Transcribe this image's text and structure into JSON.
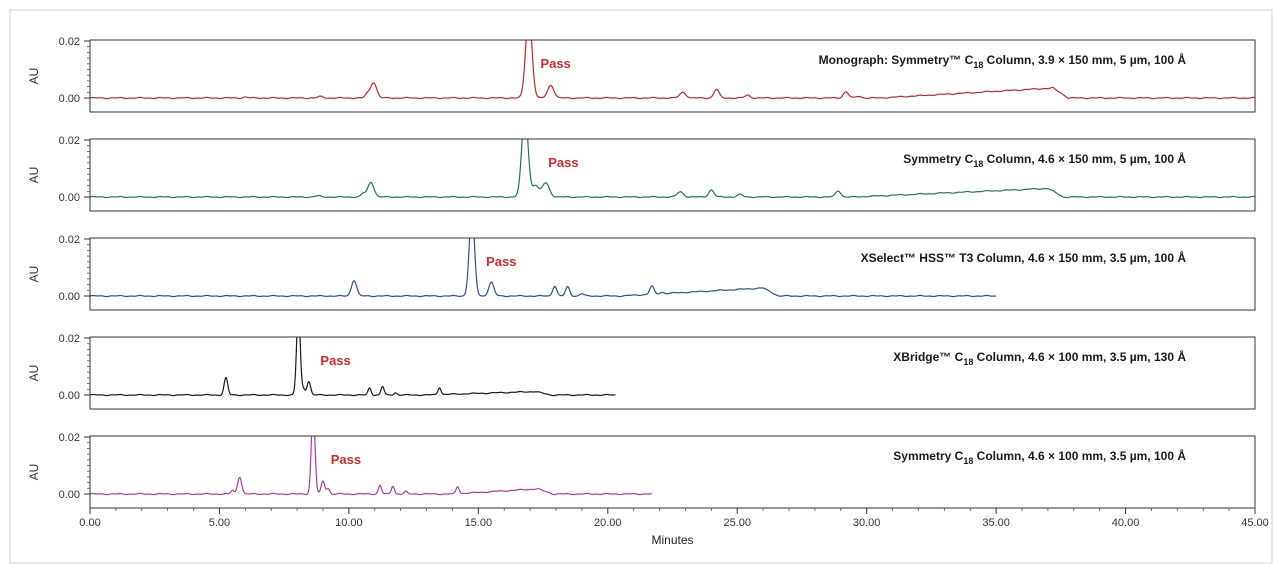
{
  "chart_data": {
    "type": "line",
    "xlabel": "Minutes",
    "ylabel": "AU",
    "xlim": [
      0,
      45
    ],
    "x_ticks": [
      "0.00",
      "5.00",
      "10.00",
      "15.00",
      "20.00",
      "25.00",
      "30.00",
      "35.00",
      "40.00",
      "45.00"
    ],
    "y_ticks": [
      "0.00",
      "0.02"
    ],
    "ylim": [
      -0.003,
      0.02
    ],
    "grid": false,
    "pass_label_color": "#d22b2b",
    "panels": [
      {
        "title_parts": [
          "Monograph: Symmetry™ C",
          "18",
          " Column, 3.9 × 150 mm, 5 µm, 100 Å"
        ],
        "pass_label": "Pass",
        "pass_x": 17.4,
        "color": "#c0272d",
        "x_end": 45,
        "peaks": [
          [
            10.95,
            0.0055,
            0.12
          ],
          [
            10.7,
            0.0012,
            0.08
          ],
          [
            16.95,
            0.03,
            0.12
          ],
          [
            17.8,
            0.0045,
            0.12
          ],
          [
            22.9,
            0.002,
            0.12
          ],
          [
            24.2,
            0.003,
            0.1
          ],
          [
            25.4,
            0.001,
            0.1
          ],
          [
            29.2,
            0.0022,
            0.1
          ],
          [
            29.7,
            0.0006,
            0.1
          ],
          [
            8.9,
            0.0005,
            0.1
          ],
          [
            6.0,
            0.0003,
            0.1
          ]
        ],
        "hump": [
          30.5,
          37.2,
          0.0035
        ]
      },
      {
        "title_parts": [
          "Symmetry C",
          "18",
          " Column, 4.6 × 150 mm, 5 µm, 100 Å"
        ],
        "pass_label": "Pass",
        "pass_x": 17.7,
        "color": "#1e7a45",
        "x_end": 45,
        "peaks": [
          [
            10.85,
            0.0052,
            0.12
          ],
          [
            10.55,
            0.0012,
            0.08
          ],
          [
            16.8,
            0.03,
            0.12
          ],
          [
            17.6,
            0.005,
            0.14
          ],
          [
            17.2,
            0.004,
            0.12
          ],
          [
            22.8,
            0.0018,
            0.12
          ],
          [
            24.0,
            0.0025,
            0.1
          ],
          [
            25.1,
            0.0009,
            0.1
          ],
          [
            28.9,
            0.0022,
            0.1
          ],
          [
            8.8,
            0.0004,
            0.1
          ]
        ],
        "hump": [
          29.5,
          37.0,
          0.003
        ]
      },
      {
        "title_parts": [
          "XSelect™ HSS™ T3 Column, 4.6 × 150 mm, 3.5 µm, 100 Å"
        ],
        "pass_label": "Pass",
        "pass_x": 15.3,
        "color": "#2a4f97",
        "x_end": 35,
        "peaks": [
          [
            10.2,
            0.0055,
            0.1
          ],
          [
            14.75,
            0.03,
            0.1
          ],
          [
            15.5,
            0.0048,
            0.1
          ],
          [
            17.95,
            0.0035,
            0.08
          ],
          [
            18.45,
            0.0032,
            0.08
          ],
          [
            19.0,
            0.0008,
            0.08
          ],
          [
            21.7,
            0.0028,
            0.08
          ],
          [
            22.1,
            0.0005,
            0.08
          ]
        ],
        "hump": [
          20.5,
          26.0,
          0.0028
        ]
      },
      {
        "title_parts": [
          "XBridge™ C",
          "18",
          " Column, 4.6 × 100 mm, 3.5 µm, 130 Å"
        ],
        "pass_label": "Pass",
        "pass_x": 8.9,
        "color": "#1a1a1a",
        "x_end": 20.3,
        "peaks": [
          [
            5.25,
            0.006,
            0.07
          ],
          [
            8.05,
            0.03,
            0.07
          ],
          [
            8.45,
            0.0048,
            0.07
          ],
          [
            8.25,
            0.002,
            0.06
          ],
          [
            10.8,
            0.0025,
            0.06
          ],
          [
            11.3,
            0.003,
            0.06
          ],
          [
            11.8,
            0.0008,
            0.06
          ],
          [
            13.5,
            0.0025,
            0.06
          ]
        ],
        "hump": [
          13.0,
          17.2,
          0.0012
        ]
      },
      {
        "title_parts": [
          "Symmetry C",
          "18",
          " Column, 4.6 × 100 mm, 3.5 µm, 100 Å"
        ],
        "pass_label": "Pass",
        "pass_x": 9.3,
        "color": "#b03a9a",
        "x_end": 21.7,
        "peaks": [
          [
            5.78,
            0.006,
            0.08
          ],
          [
            5.5,
            0.0012,
            0.06
          ],
          [
            8.62,
            0.03,
            0.07
          ],
          [
            9.0,
            0.0045,
            0.07
          ],
          [
            9.2,
            0.002,
            0.06
          ],
          [
            11.2,
            0.003,
            0.06
          ],
          [
            11.7,
            0.0028,
            0.06
          ],
          [
            12.2,
            0.0008,
            0.06
          ],
          [
            14.2,
            0.0025,
            0.06
          ]
        ],
        "hump": [
          14.0,
          17.3,
          0.0018
        ]
      }
    ]
  }
}
